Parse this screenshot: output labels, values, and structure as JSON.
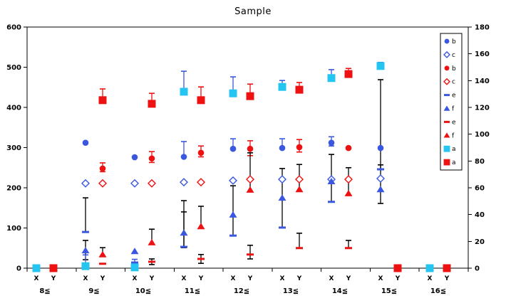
{
  "colors": {
    "blue": "#3A57E0",
    "red": "#EE1111",
    "cyan": "#25C5F2",
    "black": "#000000"
  },
  "chart_data": {
    "type": "scatter",
    "title": "Sample",
    "grid": false,
    "legend_position": "right",
    "categories": [
      "8≦",
      "9≦",
      "10≦",
      "11≦",
      "12≦",
      "13≦",
      "14≦",
      "15≦",
      "16≦"
    ],
    "sub_labels": [
      "X",
      "Y"
    ],
    "left_axis": {
      "min": 0,
      "max": 600,
      "step": 100,
      "tick_labels": [
        "0",
        "100",
        "200",
        "300",
        "400",
        "500",
        "600"
      ]
    },
    "right_axis": {
      "min": 0,
      "max": 180,
      "step": 20,
      "tick_labels": [
        "0",
        "20",
        "40",
        "60",
        "80",
        "100",
        "120",
        "140",
        "160",
        "180"
      ]
    },
    "series": [
      {
        "key": "b-blue",
        "label": "b",
        "marker": "circle",
        "fill": "solid",
        "color": "blue",
        "column": "X",
        "values": [
          null,
          312,
          276,
          277,
          297,
          299,
          312,
          299,
          null
        ],
        "err_up": [
          null,
          null,
          null,
          38,
          25,
          23,
          15,
          null,
          null
        ],
        "err_down": [
          null,
          null,
          null,
          null,
          null,
          null,
          8,
          null,
          null
        ],
        "err_color": "blue"
      },
      {
        "key": "c-blue",
        "label": "c",
        "marker": "diamond",
        "fill": "open",
        "color": "blue",
        "column": "X",
        "values": [
          null,
          211,
          211,
          214,
          218,
          221,
          221,
          223,
          null
        ]
      },
      {
        "key": "b-red",
        "label": "b",
        "marker": "circle",
        "fill": "solid",
        "color": "red",
        "column": "Y",
        "values": [
          null,
          248,
          273,
          287,
          297,
          301,
          299,
          null,
          null
        ],
        "err_up": [
          null,
          14,
          17,
          17,
          20,
          19,
          null,
          null,
          null
        ],
        "err_down": [
          null,
          8,
          10,
          10,
          17,
          12,
          null,
          null,
          null
        ],
        "err_color": "red"
      },
      {
        "key": "c-red",
        "label": "c",
        "marker": "diamond",
        "fill": "open",
        "color": "red",
        "column": "Y",
        "values": [
          null,
          211,
          211,
          214,
          221,
          221,
          221,
          null,
          null
        ]
      },
      {
        "key": "e-blue",
        "label": "e",
        "marker": "dash",
        "fill": "solid",
        "color": "blue",
        "column": "X",
        "values": [
          null,
          90,
          14,
          53,
          81,
          101,
          165,
          246,
          null
        ],
        "err_up": [
          null,
          85,
          null,
          115,
          124,
          147,
          118,
          11,
          null
        ],
        "err_color": "black"
      },
      {
        "key": "f-blue",
        "label": "f",
        "marker": "triangle",
        "fill": "solid",
        "color": "blue",
        "column": "X",
        "values": [
          null,
          44,
          42,
          88,
          133,
          175,
          216,
          196,
          null
        ],
        "err_up": [
          null,
          25,
          null,
          52,
          null,
          null,
          null,
          273,
          null
        ],
        "err_down": [
          null,
          23,
          null,
          37,
          null,
          null,
          null,
          35,
          null
        ],
        "err_color": "black"
      },
      {
        "key": "e-red",
        "label": "e",
        "marker": "dash",
        "fill": "solid",
        "color": "red",
        "column": "Y",
        "values": [
          null,
          11,
          16,
          23,
          34,
          50,
          50,
          null,
          null
        ],
        "err_up": [
          null,
          null,
          7,
          11,
          23,
          37,
          19,
          null,
          null
        ],
        "err_down": [
          null,
          null,
          7,
          11,
          11,
          null,
          null,
          null,
          null
        ],
        "err_color": "black"
      },
      {
        "key": "f-red",
        "label": "f",
        "marker": "triangle",
        "fill": "solid",
        "color": "red",
        "column": "Y",
        "values": [
          null,
          34,
          64,
          104,
          195,
          196,
          186,
          null,
          null
        ],
        "err_up": [
          null,
          17,
          33,
          50,
          92,
          62,
          64,
          null,
          null
        ],
        "err_color": "black"
      },
      {
        "key": "a-cyan",
        "label": "a",
        "marker": "square",
        "fill": "solid",
        "color": "cyan",
        "column": "X",
        "values": [
          0,
          5,
          2,
          439,
          435,
          451,
          473,
          503,
          0
        ],
        "err_up": [
          null,
          28,
          20,
          51,
          41,
          16,
          21,
          9,
          null
        ],
        "err_color": "blue"
      },
      {
        "key": "a-red",
        "label": "a",
        "marker": "square",
        "fill": "solid",
        "color": "red",
        "column": "Y",
        "values": [
          0,
          418,
          409,
          418,
          428,
          444,
          483,
          0,
          0
        ],
        "err_up": [
          null,
          28,
          26,
          33,
          30,
          18,
          14,
          null,
          null
        ],
        "err_color": "red"
      }
    ]
  }
}
